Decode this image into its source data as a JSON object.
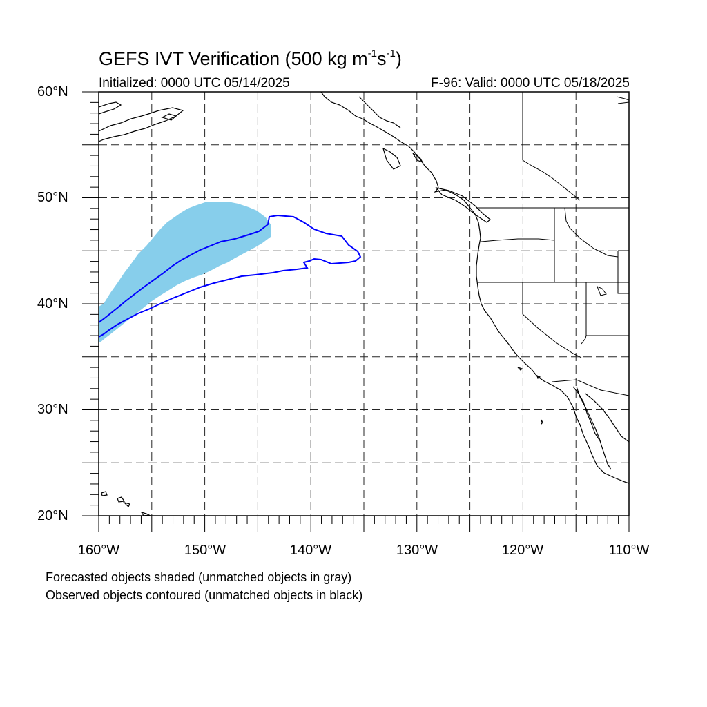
{
  "title": {
    "main": "GEFS IVT Verification (500 kg m",
    "exp1": "-1",
    "mid": "s",
    "exp2": "-1",
    "end": ")"
  },
  "subtitle": {
    "initialized": "Initialized: 0000 UTC 05/14/2025",
    "valid": "F-96: Valid: 0000 UTC 05/18/2025"
  },
  "map": {
    "lon_range": [
      -160,
      -110
    ],
    "lat_range": [
      20,
      60
    ],
    "lat_labels": [
      "20°N",
      "30°N",
      "40°N",
      "50°N",
      "60°N"
    ],
    "lon_labels": [
      "160°W",
      "150°W",
      "140°W",
      "130°W",
      "120°W",
      "110°W"
    ],
    "grid": "dashed, every 5°",
    "forecast_fill_color": "#87ceeb",
    "observed_contour_color": "#0000ff",
    "coastline_color": "#000000"
  },
  "notes": {
    "line1": "Forecasted objects shaded (unmatched objects in gray)",
    "line2": "Observed objects contoured (unmatched objects in black)"
  }
}
